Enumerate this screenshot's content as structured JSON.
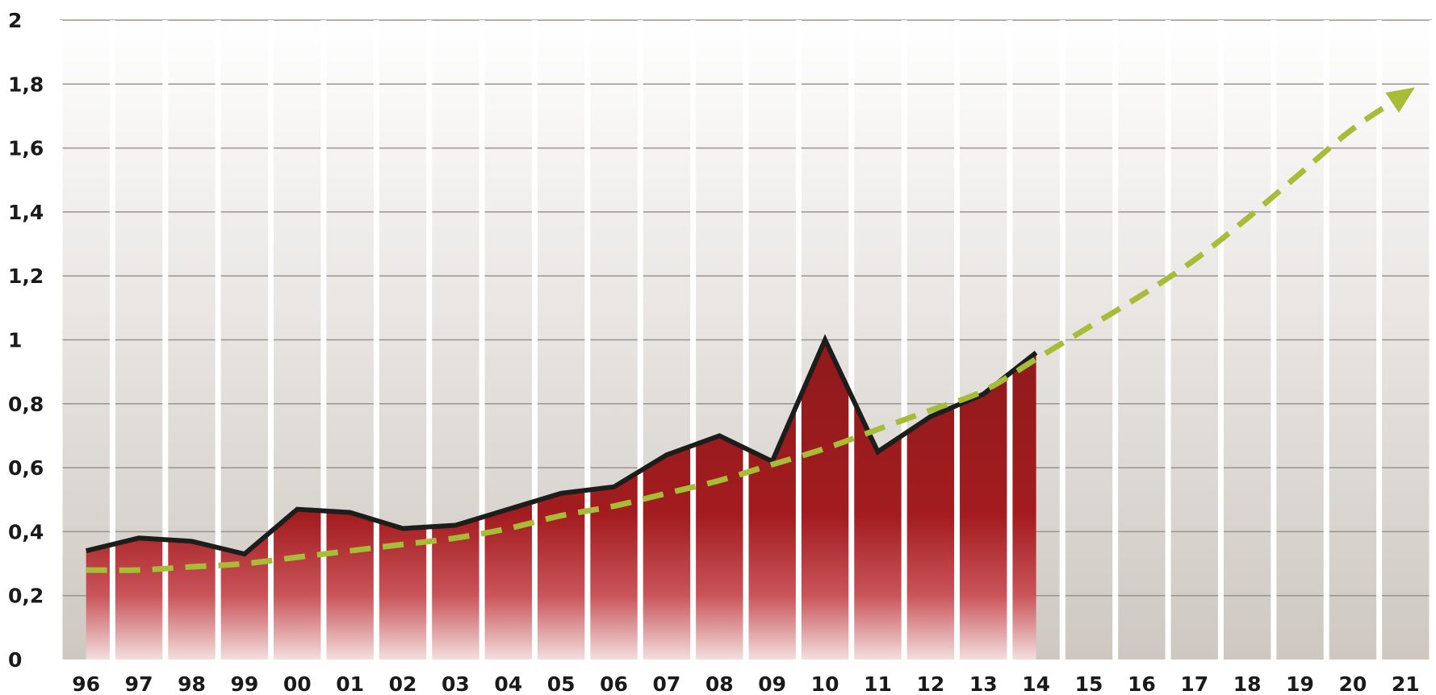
{
  "chart_data": {
    "type": "area",
    "title": "",
    "xlabel": "",
    "ylabel": "",
    "categories": [
      "96",
      "97",
      "98",
      "99",
      "00",
      "01",
      "02",
      "03",
      "04",
      "05",
      "06",
      "07",
      "08",
      "09",
      "10",
      "11",
      "12",
      "13",
      "14",
      "15",
      "16",
      "17",
      "18",
      "19",
      "20",
      "21"
    ],
    "ylim": [
      0,
      2
    ],
    "yticks": [
      "0",
      "0,2",
      "0,4",
      "0,6",
      "0,8",
      "1",
      "1,2",
      "1,4",
      "1,6",
      "1,8",
      "2"
    ],
    "grid": true,
    "legend": "none",
    "series": [
      {
        "values": [
          0.34,
          0.38,
          0.37,
          0.33,
          0.47,
          0.46,
          0.41,
          0.42,
          0.47,
          0.52,
          0.54,
          0.64,
          0.7,
          0.62,
          1.0,
          0.65,
          0.76,
          0.83,
          0.96,
          null,
          null,
          null,
          null,
          null,
          null,
          null
        ],
        "fill_color": "#a31c1f",
        "line_color": "#1d1d1b"
      },
      {
        "values": [
          0.28,
          0.28,
          0.29,
          0.3,
          0.32,
          0.34,
          0.36,
          0.38,
          0.41,
          0.45,
          0.48,
          0.52,
          0.56,
          0.61,
          0.66,
          0.72,
          0.78,
          0.84,
          0.94,
          1.04,
          1.14,
          1.25,
          1.38,
          1.52,
          1.66,
          1.77
        ],
        "style": "dashed-arrow",
        "line_color": "#a7bd37"
      }
    ],
    "colors": {
      "background_top": "#ffffff",
      "background_bottom": "#cec8c1",
      "gridline": "#9a948e",
      "column_separator": "#ffffff"
    }
  }
}
